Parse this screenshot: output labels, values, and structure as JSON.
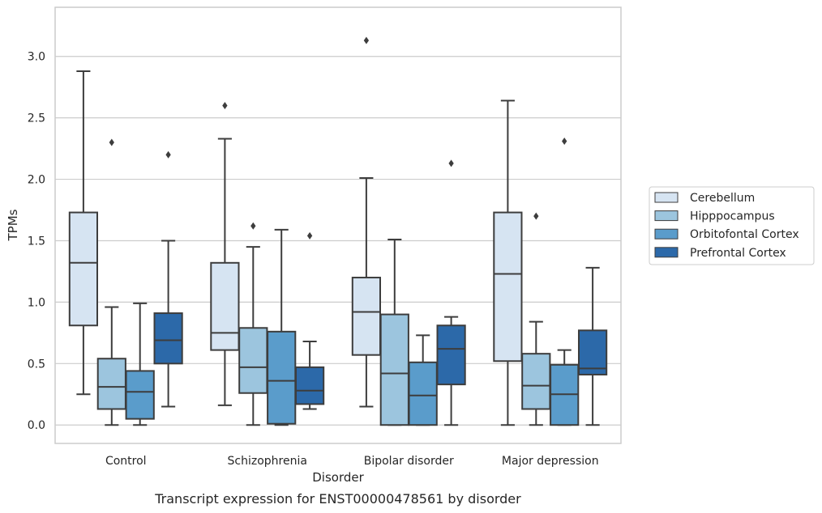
{
  "chart_data": {
    "type": "box",
    "caption": "Transcript expression for ENST00000478561 by disorder",
    "xlabel": "Disorder",
    "ylabel": "TPMs",
    "ylim": [
      -0.15,
      3.4
    ],
    "yticks": [
      "0.0",
      "0.5",
      "1.0",
      "1.5",
      "2.0",
      "2.5",
      "3.0"
    ],
    "grid": "horizontal",
    "legend_position": "right",
    "categories": [
      "Control",
      "Schizophrenia",
      "Bipolar disorder",
      "Major depression"
    ],
    "series": [
      {
        "name": "Cerebellum",
        "color": "#d6e4f2",
        "boxes": [
          {
            "whislo": 0.25,
            "q1": 0.81,
            "med": 1.32,
            "q3": 1.73,
            "whishi": 2.88,
            "fliers": []
          },
          {
            "whislo": 0.16,
            "q1": 0.61,
            "med": 0.75,
            "q3": 1.32,
            "whishi": 2.33,
            "fliers": [
              2.6
            ]
          },
          {
            "whislo": 0.15,
            "q1": 0.57,
            "med": 0.92,
            "q3": 1.2,
            "whishi": 2.01,
            "fliers": [
              3.13
            ]
          },
          {
            "whislo": 0.0,
            "q1": 0.52,
            "med": 1.23,
            "q3": 1.73,
            "whishi": 2.64,
            "fliers": []
          }
        ]
      },
      {
        "name": "Hipppocampus",
        "color": "#9cc5de",
        "boxes": [
          {
            "whislo": 0.0,
            "q1": 0.13,
            "med": 0.31,
            "q3": 0.54,
            "whishi": 0.96,
            "fliers": [
              2.3
            ]
          },
          {
            "whislo": 0.0,
            "q1": 0.26,
            "med": 0.47,
            "q3": 0.79,
            "whishi": 1.45,
            "fliers": [
              1.62
            ]
          },
          {
            "whislo": 0.0,
            "q1": 0.0,
            "med": 0.42,
            "q3": 0.9,
            "whishi": 1.51,
            "fliers": []
          },
          {
            "whislo": 0.0,
            "q1": 0.13,
            "med": 0.32,
            "q3": 0.58,
            "whishi": 0.84,
            "fliers": [
              1.7
            ]
          }
        ]
      },
      {
        "name": "Orbitofontal Cortex",
        "color": "#5a9ccb",
        "boxes": [
          {
            "whislo": 0.0,
            "q1": 0.05,
            "med": 0.27,
            "q3": 0.44,
            "whishi": 0.99,
            "fliers": []
          },
          {
            "whislo": 0.0,
            "q1": 0.01,
            "med": 0.36,
            "q3": 0.76,
            "whishi": 1.59,
            "fliers": []
          },
          {
            "whislo": 0.0,
            "q1": 0.0,
            "med": 0.24,
            "q3": 0.51,
            "whishi": 0.73,
            "fliers": []
          },
          {
            "whislo": 0.0,
            "q1": 0.0,
            "med": 0.25,
            "q3": 0.49,
            "whishi": 0.61,
            "fliers": [
              2.31
            ]
          }
        ]
      },
      {
        "name": "Prefrontal Cortex",
        "color": "#2c69a9",
        "boxes": [
          {
            "whislo": 0.15,
            "q1": 0.5,
            "med": 0.69,
            "q3": 0.91,
            "whishi": 1.5,
            "fliers": [
              2.2
            ]
          },
          {
            "whislo": 0.13,
            "q1": 0.17,
            "med": 0.28,
            "q3": 0.47,
            "whishi": 0.68,
            "fliers": [
              1.54
            ]
          },
          {
            "whislo": 0.0,
            "q1": 0.33,
            "med": 0.62,
            "q3": 0.81,
            "whishi": 0.88,
            "fliers": [
              2.13
            ]
          },
          {
            "whislo": 0.0,
            "q1": 0.41,
            "med": 0.46,
            "q3": 0.77,
            "whishi": 1.28,
            "fliers": []
          }
        ]
      }
    ]
  }
}
